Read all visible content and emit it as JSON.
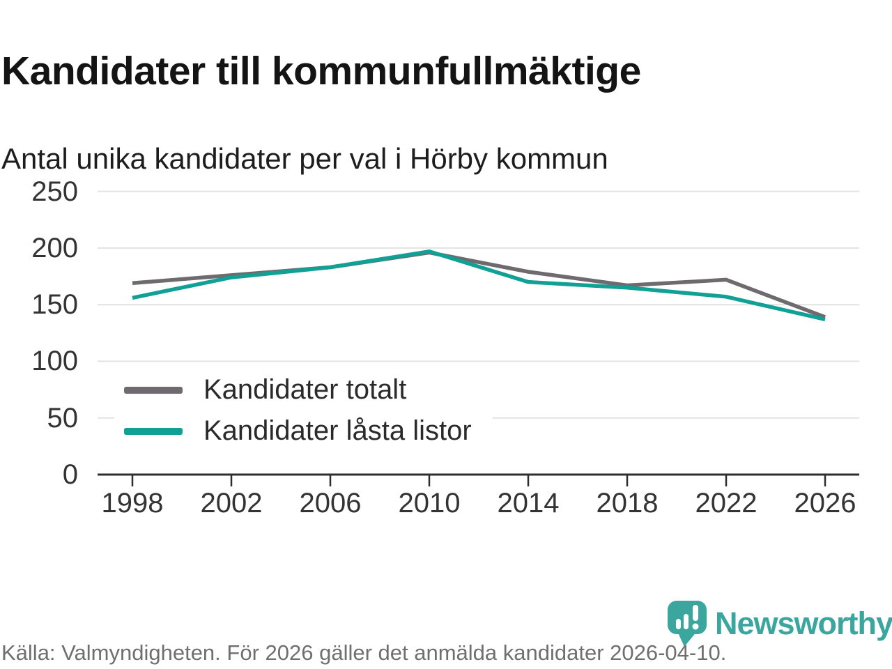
{
  "title": "Kandidater till kommunfullmäktige",
  "subtitle": "Antal unika kandidater per val i Hörby kommun",
  "source": "Källa: Valmyndigheten. För 2026 gäller det anmälda kandidater 2026-04-10.",
  "brand": {
    "name": "Newsworthy",
    "color": "#3aa69e"
  },
  "colors": {
    "total": "#6e6a6e",
    "locked": "#10a096",
    "grid": "#e2e2e2",
    "axis": "#2d2d2d",
    "tick_text": "#333333",
    "footer_text": "#6f6f6f"
  },
  "chart_data": {
    "type": "line",
    "categories": [
      "1998",
      "2002",
      "2006",
      "2010",
      "2014",
      "2018",
      "2022",
      "2026"
    ],
    "series": [
      {
        "name": "Kandidater totalt",
        "color_key": "total",
        "values": [
          169,
          176,
          183,
          196,
          179,
          167,
          172,
          139
        ]
      },
      {
        "name": "Kandidater låsta listor",
        "color_key": "locked",
        "values": [
          156,
          174,
          183,
          197,
          170,
          165,
          157,
          137
        ]
      }
    ],
    "yticks": [
      0,
      50,
      100,
      150,
      200,
      250
    ],
    "ylim": [
      0,
      250
    ],
    "grid": true,
    "legend_position": "inside-bottom-left"
  }
}
